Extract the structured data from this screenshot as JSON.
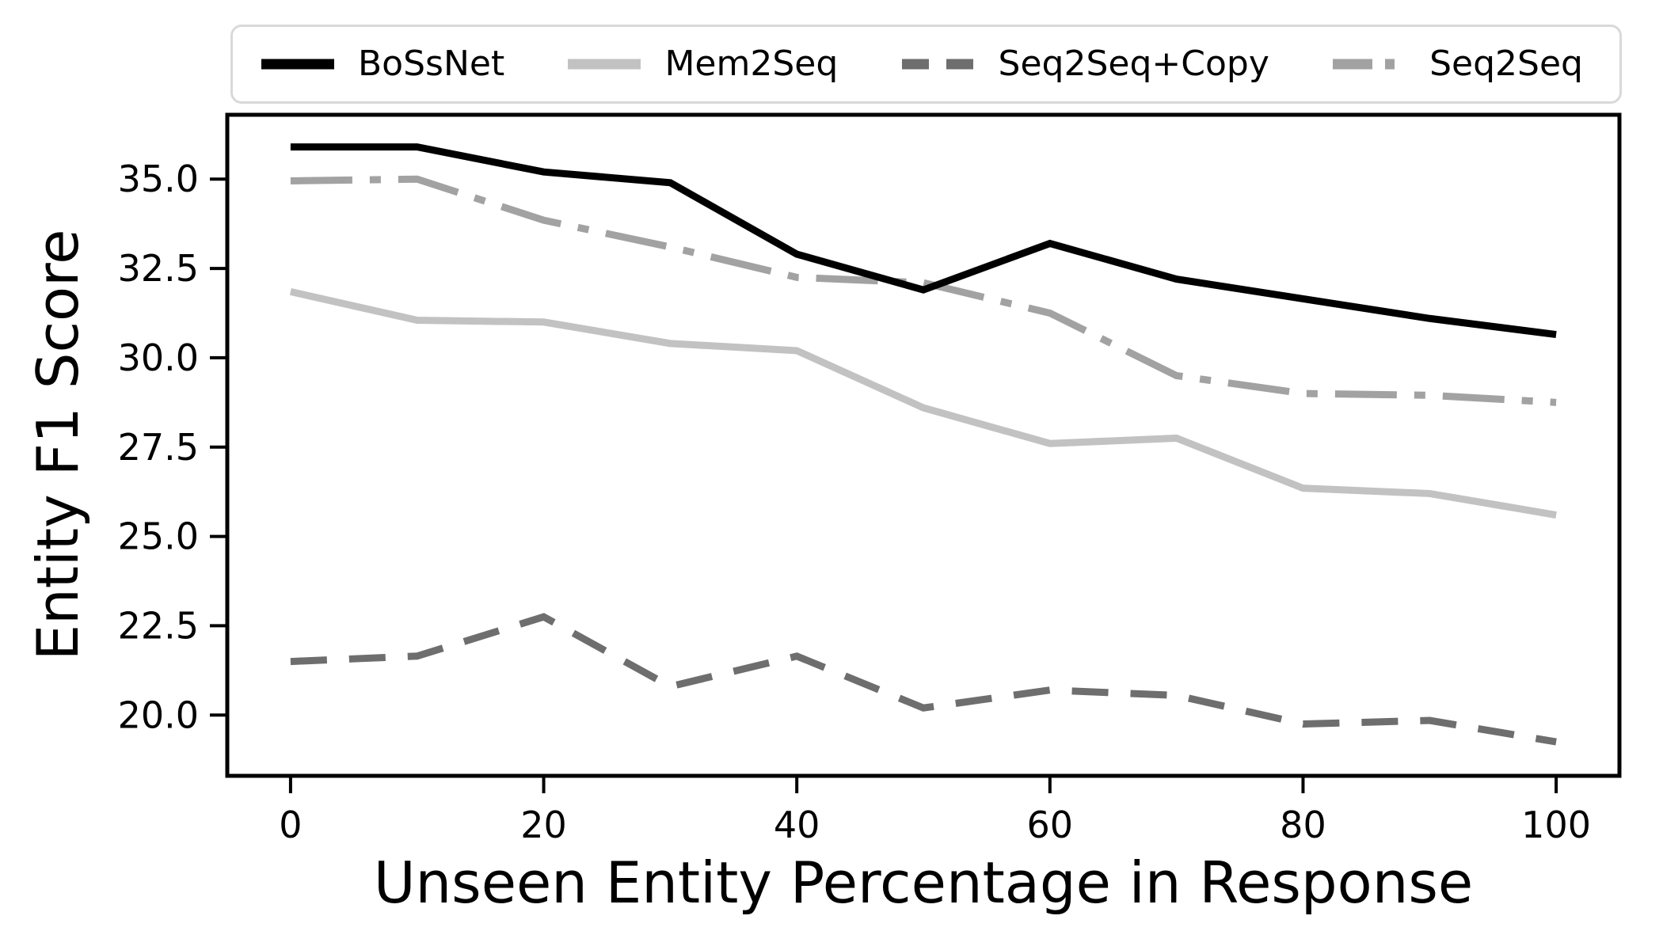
{
  "chart_data": {
    "type": "line",
    "title": "",
    "xlabel": "Unseen Entity Percentage in Response",
    "ylabel": "Entity F1 Score",
    "x": [
      0,
      10,
      20,
      30,
      40,
      50,
      60,
      70,
      80,
      90,
      100
    ],
    "x_ticks": [
      0,
      20,
      40,
      60,
      80,
      100
    ],
    "x_tick_labels": [
      "0",
      "20",
      "40",
      "60",
      "80",
      "100"
    ],
    "y_ticks": [
      20.0,
      22.5,
      25.0,
      27.5,
      30.0,
      32.5,
      35.0
    ],
    "y_tick_labels": [
      "20.0",
      "22.5",
      "25.0",
      "27.5",
      "30.0",
      "32.5",
      "35.0"
    ],
    "xlim": [
      -5,
      105
    ],
    "ylim": [
      18.3,
      36.8
    ],
    "grid": false,
    "legend_position": "top-horizontal",
    "series": [
      {
        "name": "BoSsNet",
        "color": "#000000",
        "dash": "solid",
        "values": [
          35.9,
          35.9,
          35.2,
          34.9,
          32.9,
          31.9,
          33.2,
          32.2,
          31.65,
          31.1,
          30.65
        ]
      },
      {
        "name": "Mem2Seq",
        "color": "#c2c2c2",
        "dash": "solid",
        "values": [
          31.85,
          31.05,
          31.0,
          30.4,
          30.2,
          28.6,
          27.6,
          27.75,
          26.35,
          26.2,
          25.6
        ]
      },
      {
        "name": "Seq2Seq+Copy",
        "color": "#6e6e6e",
        "dash": "dashed",
        "values": [
          21.5,
          21.65,
          22.75,
          20.8,
          21.65,
          20.2,
          20.7,
          20.55,
          19.75,
          19.85,
          19.25
        ]
      },
      {
        "name": "Seq2Seq",
        "color": "#a2a2a2",
        "dash": "dashdot",
        "values": [
          34.95,
          35.0,
          33.85,
          33.1,
          32.25,
          32.1,
          31.25,
          29.5,
          29.0,
          28.95,
          28.75
        ]
      }
    ]
  }
}
